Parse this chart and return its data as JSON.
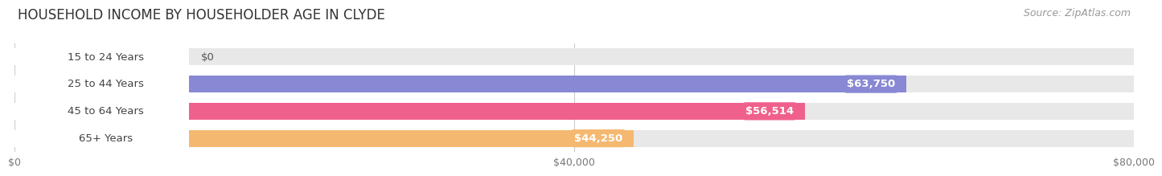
{
  "title": "HOUSEHOLD INCOME BY HOUSEHOLDER AGE IN CLYDE",
  "source": "Source: ZipAtlas.com",
  "categories": [
    "15 to 24 Years",
    "25 to 44 Years",
    "45 to 64 Years",
    "65+ Years"
  ],
  "values": [
    0,
    63750,
    56514,
    44250
  ],
  "value_labels": [
    "$0",
    "$63,750",
    "$56,514",
    "$44,250"
  ],
  "bar_colors": [
    "#62cece",
    "#8888d4",
    "#f0608c",
    "#f5b870"
  ],
  "bar_track_color": "#e8e8e8",
  "xlim": [
    0,
    80000
  ],
  "xticks": [
    0,
    40000,
    80000
  ],
  "xtick_labels": [
    "$0",
    "$40,000",
    "$80,000"
  ],
  "background_color": "#ffffff",
  "title_fontsize": 12,
  "source_fontsize": 9,
  "label_fontsize": 9.5,
  "tick_fontsize": 9,
  "bar_height": 0.62,
  "bar_label_color_inside": "#ffffff",
  "bar_label_color_outside": "#555555"
}
